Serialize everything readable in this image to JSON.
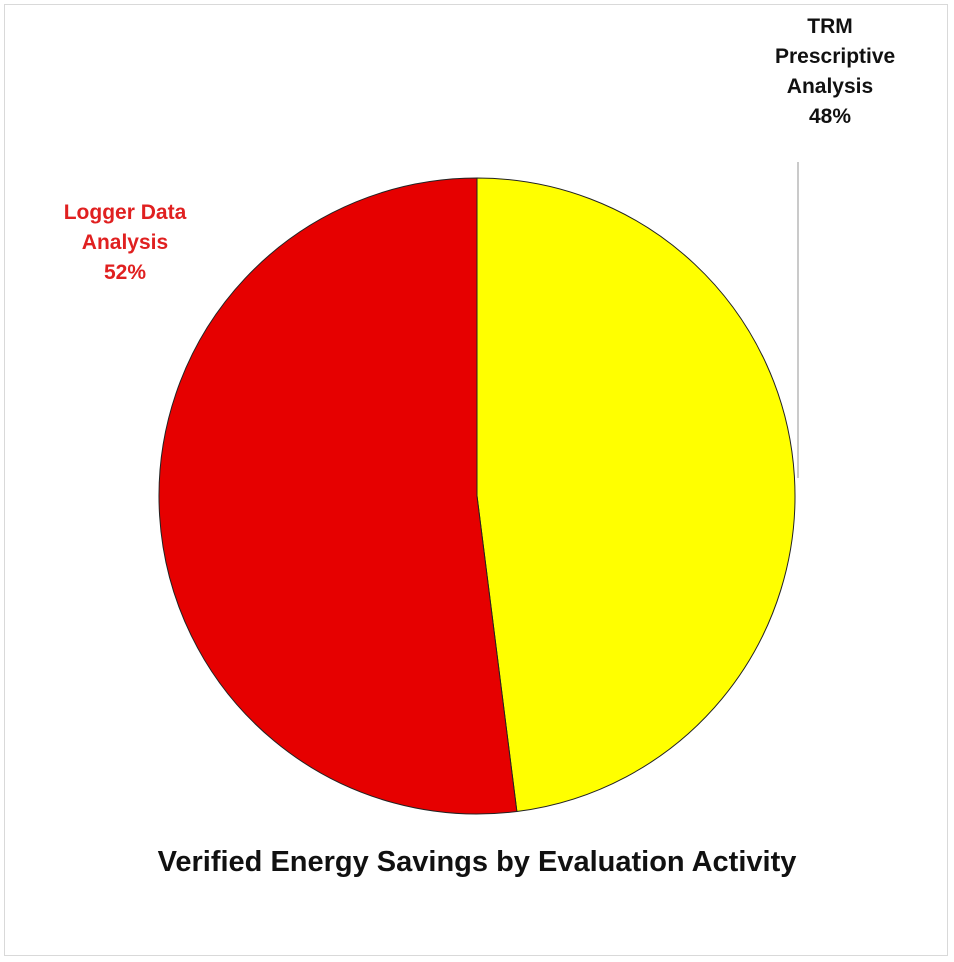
{
  "chart_data": {
    "type": "pie",
    "title": "Verified Energy Savings by Evaluation Activity",
    "categories": [
      "TRM Prescriptive Analysis",
      "Logger Data Analysis"
    ],
    "values": [
      48,
      52
    ],
    "value_labels": [
      "48%",
      "52%"
    ],
    "colors": [
      "#ffff00",
      "#e60000"
    ]
  }
}
